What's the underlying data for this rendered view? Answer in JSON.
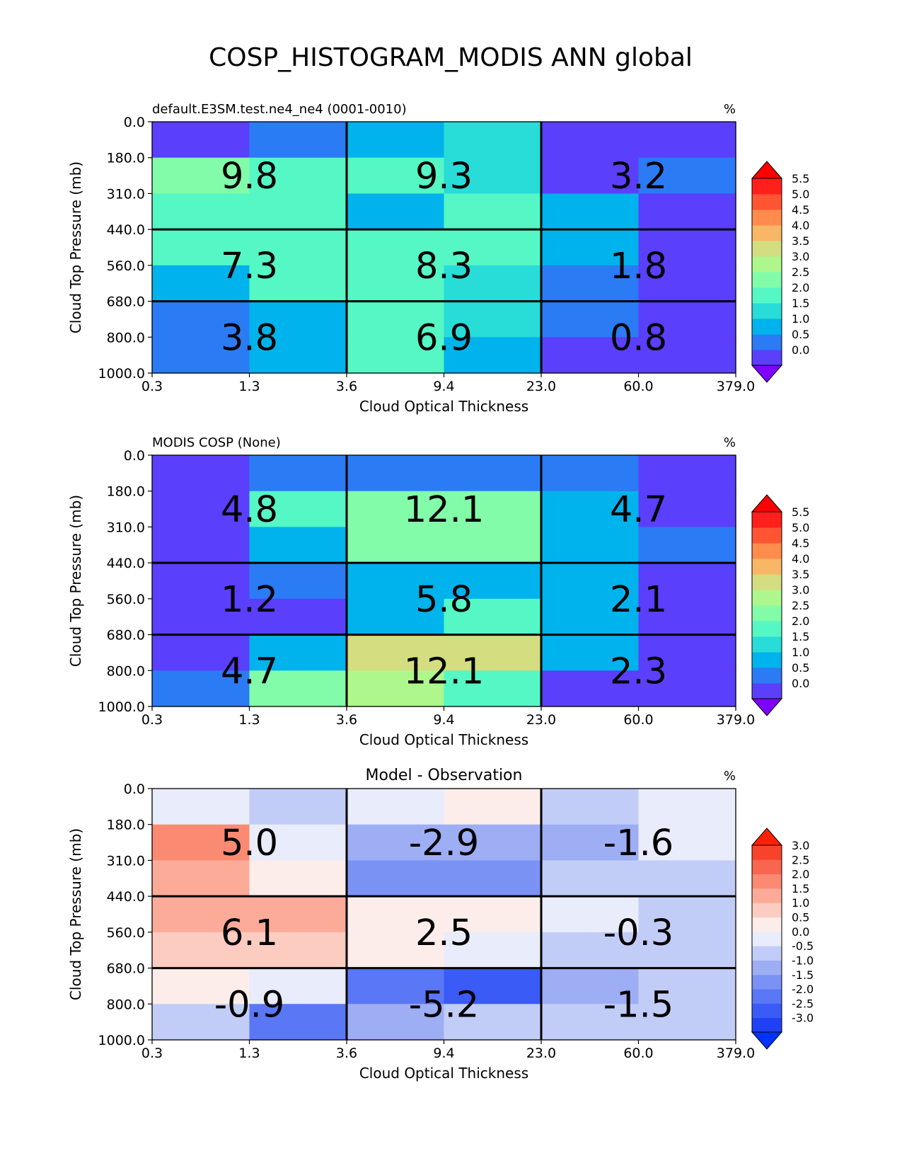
{
  "figure_title": "COSP_HISTOGRAM_MODIS ANN global",
  "chart_data": [
    {
      "type": "heatmap",
      "title_left": "default.E3SM.test.ne4_ne4 (0001-0010)",
      "title_center": "",
      "units": "%",
      "xlabel": "Cloud Optical Thickness",
      "ylabel": "Cloud Top Pressure (mb)",
      "x_ticks": [
        "0.3",
        "1.3",
        "3.6",
        "9.4",
        "23.0",
        "60.0",
        "379.0"
      ],
      "y_ticks": [
        "0.0",
        "180.0",
        "310.0",
        "440.0",
        "560.0",
        "680.0",
        "800.0",
        "1000.0"
      ],
      "cells": [
        [
          0.4,
          0.8,
          1.2,
          1.8,
          0.4,
          0.4
        ],
        [
          2.7,
          2.3,
          2.0,
          1.9,
          0.4,
          0.8
        ],
        [
          2.3,
          2.0,
          1.2,
          2.0,
          1.3,
          0.4
        ],
        [
          2.0,
          2.3,
          2.3,
          2.3,
          1.2,
          0.4
        ],
        [
          1.3,
          2.0,
          2.3,
          1.9,
          0.8,
          0.4
        ],
        [
          0.8,
          1.2,
          2.0,
          1.9,
          0.8,
          0.4
        ],
        [
          0.8,
          1.2,
          2.3,
          1.2,
          0.4,
          0.4
        ]
      ],
      "group_labels": [
        [
          "9.8",
          "9.3",
          "3.2"
        ],
        [
          "7.3",
          "8.3",
          "1.8"
        ],
        [
          "3.8",
          "6.9",
          "0.8"
        ]
      ],
      "colorbar": {
        "ticks": [
          "0.0",
          "0.5",
          "1.0",
          "1.5",
          "2.0",
          "2.5",
          "3.0",
          "3.5",
          "4.0",
          "4.5",
          "5.0",
          "5.5"
        ],
        "colors": [
          "#5a3ffd",
          "#2b7bf4",
          "#00b3ec",
          "#28dcd8",
          "#55f7c4",
          "#82fca8",
          "#aef78c",
          "#d4dd80",
          "#f8b766",
          "#ff8c4d",
          "#ff5533",
          "#ff1f1b"
        ],
        "under_color": "#8000ff",
        "over_color": "#ff0000"
      }
    },
    {
      "type": "heatmap",
      "title_left": "MODIS COSP (None)",
      "title_center": "",
      "units": "%",
      "xlabel": "Cloud Optical Thickness",
      "ylabel": "Cloud Top Pressure (mb)",
      "x_ticks": [
        "0.3",
        "1.3",
        "3.6",
        "9.4",
        "23.0",
        "60.0",
        "379.0"
      ],
      "y_ticks": [
        "0.0",
        "180.0",
        "310.0",
        "440.0",
        "560.0",
        "680.0",
        "800.0",
        "1000.0"
      ],
      "cells": [
        [
          0.4,
          0.8,
          0.8,
          0.8,
          0.8,
          0.4
        ],
        [
          0.4,
          2.0,
          2.7,
          2.7,
          1.3,
          0.4
        ],
        [
          0.4,
          1.3,
          2.7,
          2.7,
          1.3,
          0.8
        ],
        [
          0.4,
          0.8,
          1.3,
          1.3,
          1.3,
          0.4
        ],
        [
          0.4,
          0.4,
          1.3,
          2.0,
          1.3,
          0.4
        ],
        [
          0.4,
          1.3,
          3.7,
          3.7,
          1.3,
          0.4
        ],
        [
          0.8,
          2.7,
          3.2,
          2.0,
          0.4,
          0.4
        ]
      ],
      "group_labels": [
        [
          "4.8",
          "12.1",
          "4.7"
        ],
        [
          "1.2",
          "5.8",
          "2.1"
        ],
        [
          "4.7",
          "12.1",
          "2.3"
        ]
      ],
      "colorbar": {
        "ticks": [
          "0.0",
          "0.5",
          "1.0",
          "1.5",
          "2.0",
          "2.5",
          "3.0",
          "3.5",
          "4.0",
          "4.5",
          "5.0",
          "5.5"
        ],
        "colors": [
          "#5a3ffd",
          "#2b7bf4",
          "#00b3ec",
          "#28dcd8",
          "#55f7c4",
          "#82fca8",
          "#aef78c",
          "#d4dd80",
          "#f8b766",
          "#ff8c4d",
          "#ff5533",
          "#ff1f1b"
        ],
        "under_color": "#8000ff",
        "over_color": "#ff0000"
      }
    },
    {
      "type": "heatmap",
      "title_left": "",
      "title_center": "Model - Observation",
      "units": "%",
      "xlabel": "Cloud Optical Thickness",
      "ylabel": "Cloud Top Pressure (mb)",
      "x_ticks": [
        "0.3",
        "1.3",
        "3.6",
        "9.4",
        "23.0",
        "60.0",
        "379.0"
      ],
      "y_ticks": [
        "0.0",
        "180.0",
        "310.0",
        "440.0",
        "560.0",
        "680.0",
        "800.0",
        "1000.0"
      ],
      "cells": [
        [
          0.25,
          -0.25,
          0.25,
          0.75,
          -0.25,
          0.25
        ],
        [
          2.25,
          0.25,
          -0.75,
          -0.75,
          -0.75,
          0.25
        ],
        [
          1.75,
          0.75,
          -1.25,
          -1.25,
          -0.25,
          -0.25
        ],
        [
          1.75,
          1.75,
          0.75,
          0.75,
          0.25,
          -0.25
        ],
        [
          1.25,
          1.25,
          0.75,
          0.25,
          -0.25,
          -0.25
        ],
        [
          0.75,
          0.25,
          -1.75,
          -2.25,
          -0.75,
          -0.25
        ],
        [
          -0.25,
          -1.75,
          -0.75,
          -0.25,
          -0.25,
          -0.25
        ]
      ],
      "group_labels": [
        [
          "5.0",
          "-2.9",
          "-1.6"
        ],
        [
          "6.1",
          "2.5",
          "-0.3"
        ],
        [
          "-0.9",
          "-5.2",
          "-1.5"
        ]
      ],
      "colorbar": {
        "ticks": [
          "-3.0",
          "-2.5",
          "-2.0",
          "-1.5",
          "-1.0",
          "-0.5",
          "0.0",
          "0.5",
          "1.0",
          "1.5",
          "2.0",
          "2.5",
          "3.0"
        ],
        "colors": [
          "#1f40f5",
          "#3a5bf5",
          "#5a78f5",
          "#7b92f5",
          "#9daef5",
          "#c2cdf7",
          "#e9ecfa",
          "#fdedea",
          "#fdccc0",
          "#fdab99",
          "#fb8a73",
          "#f8664f",
          "#f8432b"
        ],
        "under_color": "#0033ff",
        "over_color": "#ff2200"
      }
    }
  ]
}
